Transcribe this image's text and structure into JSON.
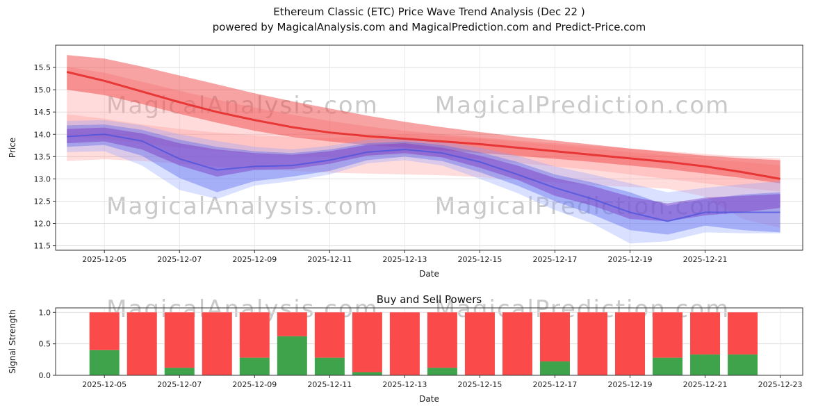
{
  "title": {
    "line1": "Ethereum Classic (ETC) Price Wave Trend Analysis (Dec 22 )",
    "line2": "powered by MagicalAnalysis.com and MagicalPrediction.com and Predict-Price.com"
  },
  "watermarks": {
    "left_text": "MagicalAnalysis.com",
    "right_text": "MagicalPrediction.com",
    "color": "#c9c9c9"
  },
  "chart_data": [
    {
      "type": "area",
      "title": "",
      "xlabel": "Date",
      "ylabel": "Price",
      "ylim": [
        11.4,
        16.0
      ],
      "grid": true,
      "yticks": [
        "11.5",
        "12.0",
        "12.5",
        "13.0",
        "13.5",
        "14.0",
        "14.5",
        "15.0",
        "15.5"
      ],
      "xtick_labels": [
        "2025-12-05",
        "2025-12-07",
        "2025-12-09",
        "2025-12-11",
        "2025-12-13",
        "2025-12-15",
        "2025-12-17",
        "2025-12-19",
        "2025-12-21"
      ],
      "dates": [
        "2025-12-04",
        "2025-12-05",
        "2025-12-06",
        "2025-12-07",
        "2025-12-08",
        "2025-12-09",
        "2025-12-10",
        "2025-12-11",
        "2025-12-12",
        "2025-12-13",
        "2025-12-14",
        "2025-12-15",
        "2025-12-16",
        "2025-12-17",
        "2025-12-18",
        "2025-12-19",
        "2025-12-20",
        "2025-12-21",
        "2025-12-22",
        "2025-12-23"
      ],
      "bands": [
        {
          "name": "upper-envelope-light-red",
          "color": "#ff8f8f",
          "opacity": 0.32,
          "upper": [
            15.52,
            15.38,
            15.18,
            14.98,
            14.78,
            14.6,
            14.44,
            14.3,
            14.18,
            14.08,
            14.0,
            13.93,
            13.86,
            13.8,
            13.74,
            13.68,
            13.62,
            13.56,
            13.5,
            13.46
          ],
          "lower": [
            13.95,
            13.9,
            13.8,
            13.7,
            13.62,
            13.56,
            13.52,
            13.5,
            13.52,
            13.54,
            13.5,
            13.44,
            13.36,
            13.28,
            13.2,
            13.1,
            13.0,
            12.9,
            12.8,
            12.72
          ]
        },
        {
          "name": "lower-envelope-light-red",
          "color": "#ff9090",
          "opacity": 0.3,
          "upper": [
            14.45,
            14.35,
            14.22,
            14.12,
            14.04,
            13.98,
            13.94,
            13.92,
            13.96,
            14.0,
            13.96,
            13.9,
            13.83,
            13.76,
            13.68,
            13.6,
            13.52,
            13.44,
            13.38,
            13.3
          ],
          "lower": [
            13.4,
            13.44,
            13.4,
            13.34,
            13.28,
            13.22,
            13.18,
            13.14,
            13.12,
            13.1,
            13.08,
            13.04,
            12.98,
            12.92,
            12.86,
            12.82,
            12.78,
            12.6,
            12.1,
            11.9
          ]
        },
        {
          "name": "core-red-ribbon",
          "color": "#f04848",
          "opacity": 0.5,
          "upper": [
            15.78,
            15.7,
            15.52,
            15.32,
            15.12,
            14.92,
            14.74,
            14.58,
            14.42,
            14.28,
            14.16,
            14.05,
            13.95,
            13.86,
            13.77,
            13.68,
            13.6,
            13.52,
            13.46,
            13.42
          ],
          "lower": [
            15.0,
            14.88,
            14.68,
            14.46,
            14.26,
            14.08,
            13.94,
            13.84,
            13.76,
            13.7,
            13.64,
            13.58,
            13.52,
            13.45,
            13.38,
            13.3,
            13.22,
            13.12,
            13.02,
            12.9
          ]
        },
        {
          "name": "light-blue-band",
          "color": "#8fa0ff",
          "opacity": 0.33,
          "upper": [
            14.3,
            14.32,
            14.2,
            14.0,
            13.85,
            13.72,
            13.66,
            13.74,
            13.88,
            13.92,
            13.84,
            13.7,
            13.52,
            13.28,
            13.1,
            12.9,
            12.7,
            12.8,
            12.88,
            12.95
          ],
          "lower": [
            13.6,
            13.62,
            13.3,
            12.75,
            12.55,
            12.85,
            12.95,
            13.1,
            13.35,
            13.42,
            13.3,
            13.0,
            12.68,
            12.3,
            12.0,
            11.55,
            11.6,
            11.8,
            11.78,
            11.78
          ]
        },
        {
          "name": "blue-band",
          "color": "#5566ee",
          "opacity": 0.4,
          "upper": [
            14.2,
            14.22,
            14.1,
            13.88,
            13.72,
            13.62,
            13.58,
            13.66,
            13.8,
            13.84,
            13.76,
            13.6,
            13.38,
            13.1,
            12.92,
            12.7,
            12.4,
            12.55,
            12.65,
            12.7
          ],
          "lower": [
            13.72,
            13.76,
            13.52,
            13.02,
            12.7,
            12.95,
            13.05,
            13.18,
            13.42,
            13.5,
            13.4,
            13.15,
            12.85,
            12.5,
            12.2,
            11.85,
            11.75,
            11.95,
            11.85,
            11.8
          ]
        },
        {
          "name": "purple-band",
          "color": "#7a35c0",
          "opacity": 0.45,
          "upper": [
            14.12,
            14.15,
            14.02,
            13.8,
            13.66,
            13.58,
            13.54,
            13.62,
            13.76,
            13.8,
            13.7,
            13.52,
            13.3,
            13.02,
            12.84,
            12.6,
            12.45,
            12.58,
            12.62,
            12.66
          ],
          "lower": [
            13.8,
            13.84,
            13.66,
            13.3,
            13.05,
            13.2,
            13.22,
            13.34,
            13.52,
            13.58,
            13.48,
            13.25,
            12.98,
            12.62,
            12.4,
            12.1,
            12.05,
            12.18,
            12.25,
            12.35
          ]
        }
      ],
      "lines": [
        {
          "name": "red-trend-line",
          "color": "#e62e2e",
          "width": 3,
          "opacity": 0.9,
          "values": [
            15.4,
            15.2,
            14.96,
            14.72,
            14.5,
            14.32,
            14.16,
            14.04,
            13.96,
            13.9,
            13.84,
            13.78,
            13.7,
            13.62,
            13.54,
            13.46,
            13.38,
            13.28,
            13.15,
            13.0
          ]
        },
        {
          "name": "blue-trend-line",
          "color": "#4450dd",
          "width": 2,
          "opacity": 0.7,
          "values": [
            13.95,
            14.0,
            13.85,
            13.45,
            13.2,
            13.28,
            13.3,
            13.42,
            13.6,
            13.66,
            13.58,
            13.38,
            13.1,
            12.8,
            12.55,
            12.25,
            12.05,
            12.25,
            12.25,
            12.25
          ]
        }
      ]
    },
    {
      "type": "bar",
      "title": "Buy and Sell Powers",
      "xlabel": "Date",
      "ylabel": "Signal Strength",
      "ylim": [
        0,
        1.07
      ],
      "grid": true,
      "yticks": [
        "0.0",
        "0.5",
        "1.0"
      ],
      "xtick_labels": [
        "2025-12-05",
        "2025-12-07",
        "2025-12-09",
        "2025-12-11",
        "2025-12-13",
        "2025-12-15",
        "2025-12-17",
        "2025-12-19",
        "2025-12-21",
        "2025-12-23"
      ],
      "categories": [
        "2025-12-05",
        "2025-12-06",
        "2025-12-07",
        "2025-12-08",
        "2025-12-09",
        "2025-12-10",
        "2025-12-11",
        "2025-12-12",
        "2025-12-13",
        "2025-12-14",
        "2025-12-15",
        "2025-12-16",
        "2025-12-17",
        "2025-12-18",
        "2025-12-19",
        "2025-12-20",
        "2025-12-21",
        "2025-12-22"
      ],
      "series": [
        {
          "name": "Buy",
          "color": "#3fa34c",
          "values": [
            0.4,
            0.0,
            0.12,
            0.0,
            0.28,
            0.62,
            0.28,
            0.05,
            0.0,
            0.12,
            0.0,
            0.0,
            0.22,
            0.0,
            0.0,
            0.28,
            0.33,
            0.33
          ]
        },
        {
          "name": "Sell",
          "color": "#fb4a4a",
          "values": [
            0.6,
            1.0,
            0.88,
            1.0,
            0.72,
            0.38,
            0.72,
            0.95,
            1.0,
            0.88,
            1.0,
            1.0,
            0.78,
            1.0,
            1.0,
            0.72,
            0.67,
            0.67
          ]
        }
      ]
    }
  ]
}
